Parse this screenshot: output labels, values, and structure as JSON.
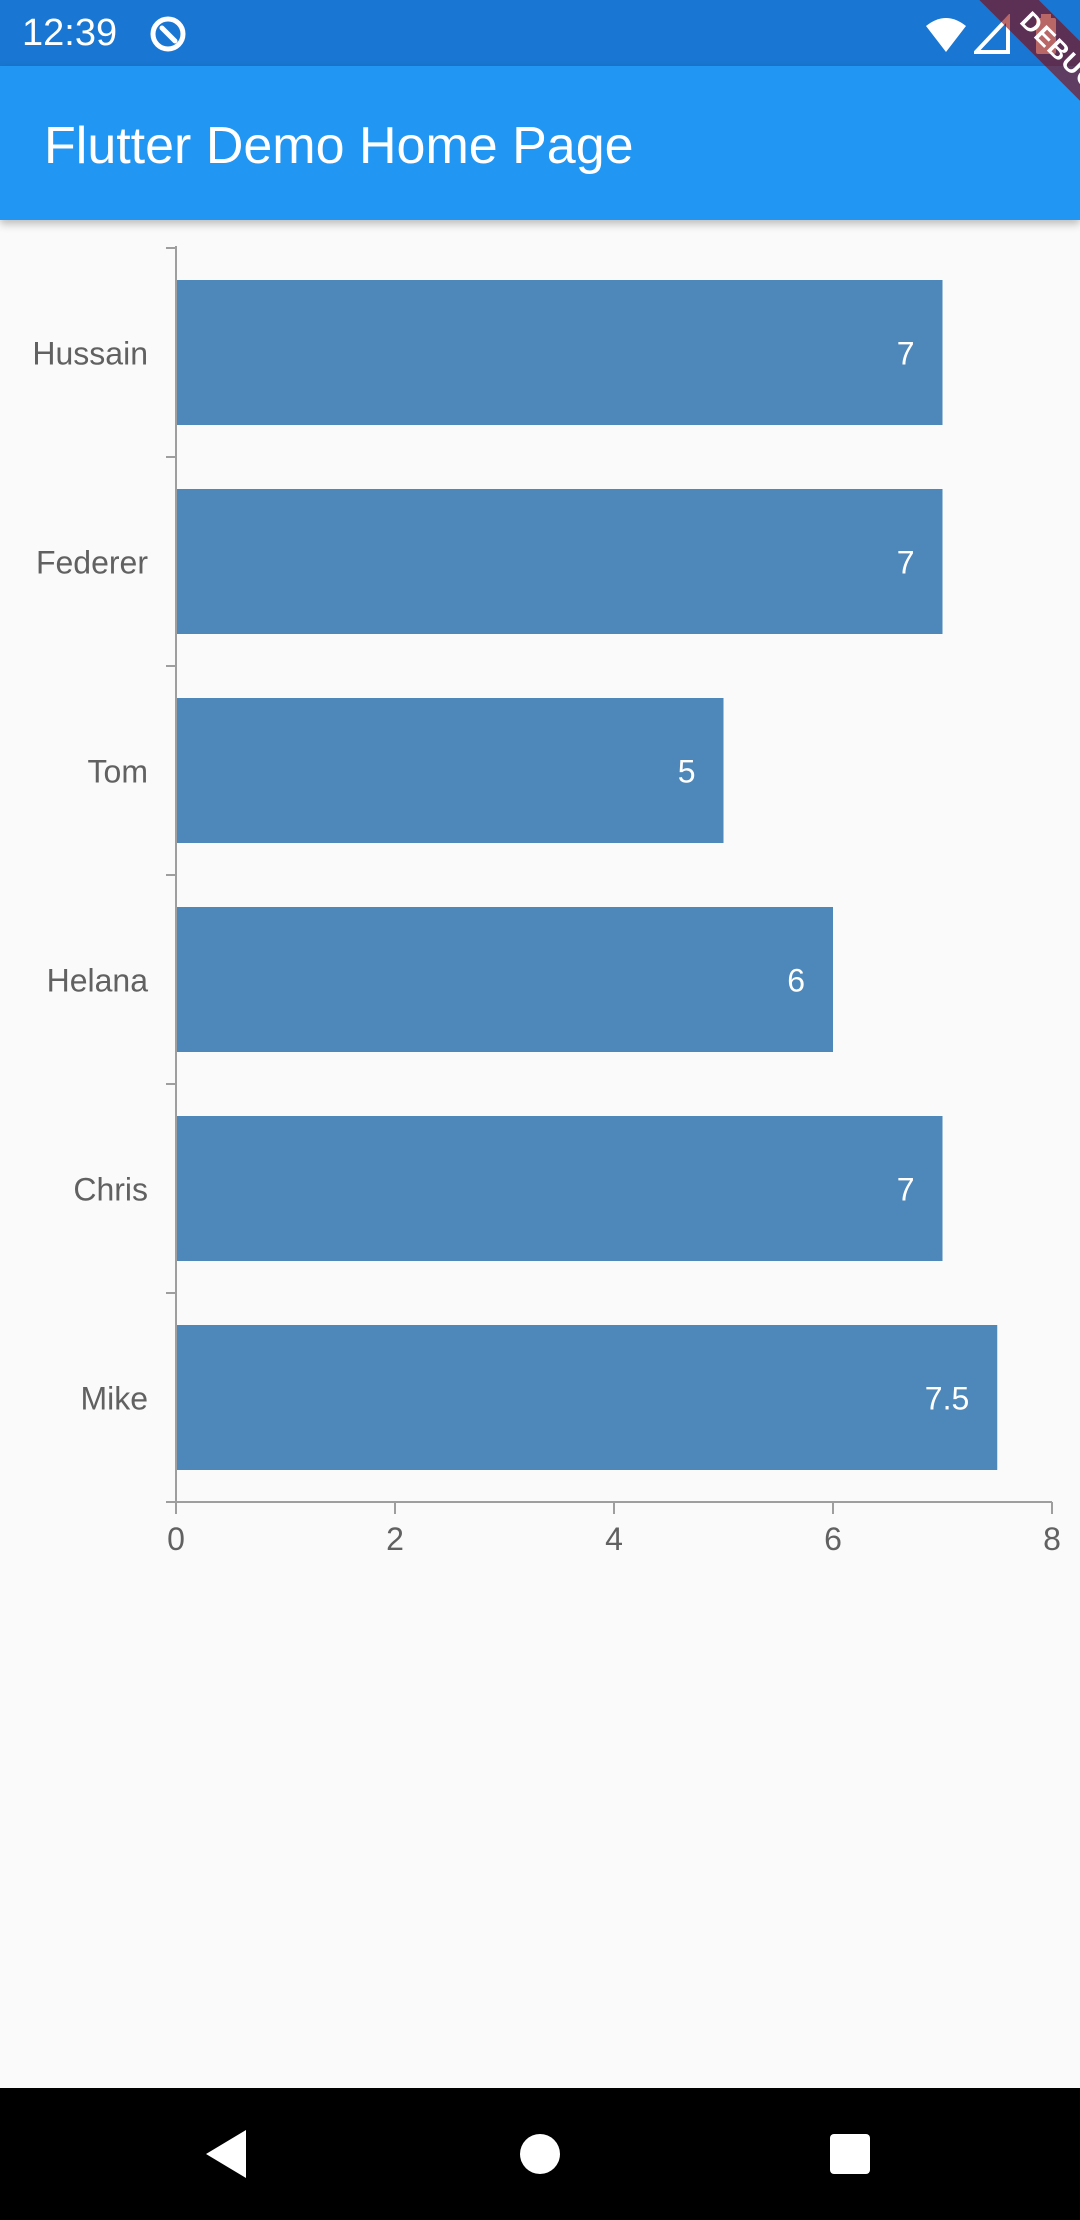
{
  "status_bar": {
    "time": "12:39",
    "icons": [
      "sync-icon",
      "wifi-icon",
      "cellular-icon",
      "battery-icon"
    ]
  },
  "app_bar": {
    "title": "Flutter Demo Home Page",
    "background": "#2196f3"
  },
  "debug_banner": {
    "label": "DEBUG"
  },
  "chart_data": {
    "type": "bar",
    "orientation": "horizontal",
    "categories": [
      "Hussain",
      "Federer",
      "Tom",
      "Helana",
      "Chris",
      "Mike"
    ],
    "values": [
      7,
      7,
      5,
      6,
      7,
      7.5
    ],
    "value_labels": [
      "7",
      "7",
      "5",
      "6",
      "7",
      "7.5"
    ],
    "xlim": [
      0,
      8
    ],
    "x_ticks": [
      "0",
      "2",
      "4",
      "6",
      "8"
    ],
    "bar_color": "#4e88ba",
    "grid": false,
    "title": "",
    "xlabel": "",
    "ylabel": ""
  },
  "nav_bar": {
    "buttons": [
      "back-icon",
      "home-icon",
      "recents-icon"
    ]
  }
}
